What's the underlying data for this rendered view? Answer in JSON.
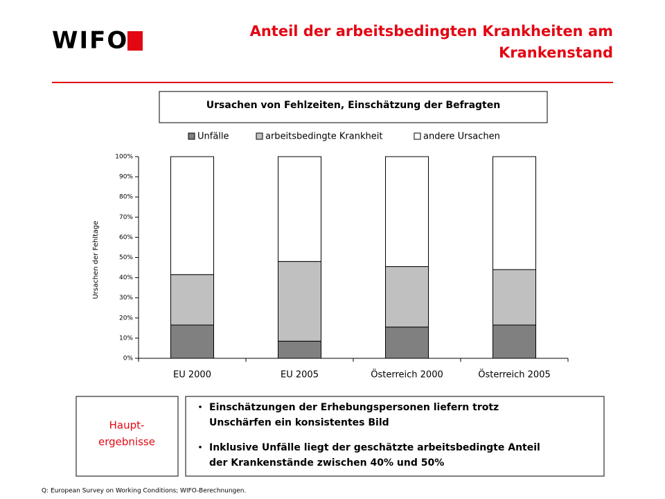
{
  "header": {
    "logo": "WIFO",
    "title_lines": [
      "Anteil der arbeitsbedingten Krankheiten am",
      "Krankenstand"
    ]
  },
  "chart_data": {
    "type": "bar",
    "stacked": true,
    "title": "Ursachen von Fehlzeiten, Einschätzung der Befragten",
    "ylabel": "Ursachen der Fehltage",
    "categories": [
      "EU 2000",
      "EU 2005",
      "Österreich 2000",
      "Österreich 2005"
    ],
    "series": [
      {
        "name": "Unfälle",
        "color": "#808080",
        "values": [
          16.5,
          8.5,
          15.5,
          16.5
        ]
      },
      {
        "name": "arbeitsbedingte Krankheit",
        "color": "#c0c0c0",
        "values": [
          25,
          39.5,
          30,
          27.5
        ]
      },
      {
        "name": "andere Ursachen",
        "color": "#ffffff",
        "values": [
          58.5,
          52,
          54.5,
          56
        ]
      }
    ],
    "ylim": [
      0,
      100
    ],
    "yticks": [
      {
        "value": 0,
        "label": "0%"
      },
      {
        "value": 10,
        "label": "10%"
      },
      {
        "value": 20,
        "label": "20%"
      },
      {
        "value": 30,
        "label": "30%"
      },
      {
        "value": 40,
        "label": "40%"
      },
      {
        "value": 50,
        "label": "50%"
      },
      {
        "value": 60,
        "label": "60%"
      },
      {
        "value": 70,
        "label": "70%"
      },
      {
        "value": 80,
        "label": "80%"
      },
      {
        "value": 90,
        "label": "90%"
      },
      {
        "value": 100,
        "label": "100%"
      }
    ],
    "legend": "top",
    "grid": false
  },
  "summary": {
    "label_lines": [
      "Haupt-",
      "ergebnisse"
    ],
    "bullets": [
      [
        "Einschätzungen der Erhebungspersonen liefern trotz",
        "Unschärfen ein konsistentes Bild"
      ],
      [
        "Inklusive Unfälle liegt der geschätzte arbeitsbedingte Anteil",
        "der Krankenstände zwischen 40% und 50%"
      ]
    ]
  },
  "source": "Q: European Survey on Working Conditions; WIFO-Berechnungen."
}
